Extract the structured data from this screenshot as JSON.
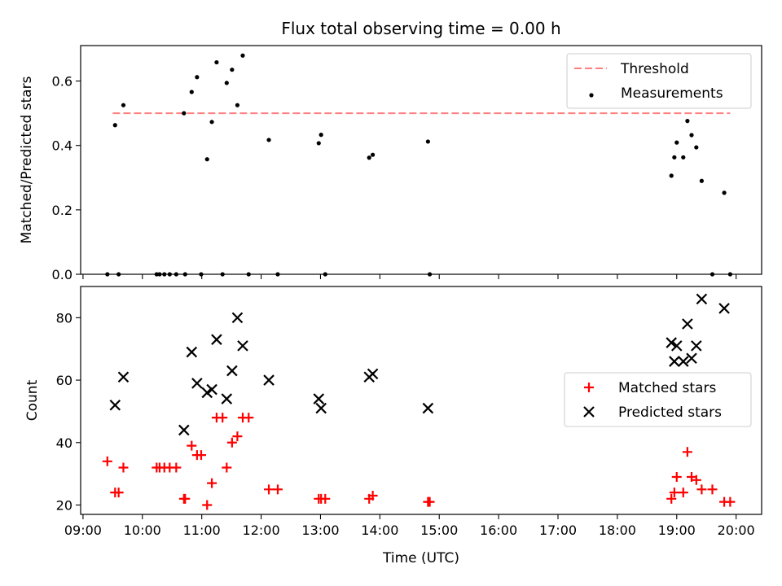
{
  "figure": {
    "title": "Flux total observing time = 0.00 h",
    "xlabel": "Time (UTC)",
    "xticks": [
      {
        "h": 9,
        "label": "09:00"
      },
      {
        "h": 10,
        "label": "10:00"
      },
      {
        "h": 11,
        "label": "11:00"
      },
      {
        "h": 12,
        "label": "12:00"
      },
      {
        "h": 13,
        "label": "13:00"
      },
      {
        "h": 14,
        "label": "14:00"
      },
      {
        "h": 15,
        "label": "15:00"
      },
      {
        "h": 16,
        "label": "16:00"
      },
      {
        "h": 17,
        "label": "17:00"
      },
      {
        "h": 18,
        "label": "18:00"
      },
      {
        "h": 19,
        "label": "19:00"
      },
      {
        "h": 20,
        "label": "20:00"
      }
    ],
    "xlim": [
      8.96,
      20.43
    ]
  },
  "chart_data": [
    {
      "type": "scatter",
      "ylabel": "Matched/Predicted stars",
      "ylim": [
        0,
        0.71
      ],
      "yticks": [
        {
          "v": 0.0,
          "label": "0.0"
        },
        {
          "v": 0.2,
          "label": "0.2"
        },
        {
          "v": 0.4,
          "label": "0.4"
        },
        {
          "v": 0.6,
          "label": "0.6"
        }
      ],
      "legend_position": "upper right",
      "threshold": {
        "name": "Threshold",
        "value": 0.5,
        "x_range": [
          9.5,
          19.9
        ],
        "color": "#ff7f7f"
      },
      "series": [
        {
          "name": "Measurements",
          "marker": "dot",
          "color": "#000000",
          "x": [
            9.41,
            9.54,
            9.6,
            9.68,
            10.24,
            10.29,
            10.37,
            10.46,
            10.57,
            10.7,
            10.72,
            10.83,
            10.92,
            10.99,
            11.09,
            11.17,
            11.25,
            11.35,
            11.42,
            11.51,
            11.6,
            11.69,
            11.79,
            12.13,
            12.28,
            12.97,
            13.01,
            13.08,
            13.82,
            13.88,
            14.81,
            14.84,
            18.91,
            18.96,
            19.0,
            19.11,
            19.18,
            19.25,
            19.33,
            19.42,
            19.6,
            19.8,
            19.9
          ],
          "y": [
            0.0,
            0.463,
            0.0,
            0.525,
            0.0,
            0.0,
            0.0,
            0.0,
            0.0,
            0.5,
            0.0,
            0.566,
            0.612,
            0.0,
            0.357,
            0.473,
            0.658,
            0.0,
            0.594,
            0.635,
            0.525,
            0.679,
            0.0,
            0.417,
            0.0,
            0.407,
            0.433,
            0.0,
            0.362,
            0.371,
            0.412,
            0.0,
            0.306,
            0.363,
            0.409,
            0.363,
            0.476,
            0.432,
            0.394,
            0.29,
            0.0,
            0.253,
            0.0
          ]
        }
      ]
    },
    {
      "type": "scatter",
      "ylabel": "Count",
      "ylim": [
        17,
        90
      ],
      "yticks": [
        {
          "v": 20,
          "label": "20"
        },
        {
          "v": 40,
          "label": "40"
        },
        {
          "v": 60,
          "label": "60"
        },
        {
          "v": 80,
          "label": "80"
        }
      ],
      "legend_position": "center right",
      "series": [
        {
          "name": "Matched stars",
          "marker": "plus",
          "color": "#ff0000",
          "x": [
            9.41,
            9.54,
            9.6,
            9.68,
            10.24,
            10.29,
            10.37,
            10.46,
            10.57,
            10.7,
            10.72,
            10.83,
            10.92,
            10.99,
            11.09,
            11.17,
            11.25,
            11.35,
            11.42,
            11.51,
            11.6,
            11.69,
            11.79,
            12.13,
            12.28,
            12.97,
            13.01,
            13.08,
            13.82,
            13.88,
            14.81,
            14.84,
            18.91,
            18.96,
            19.0,
            19.11,
            19.18,
            19.25,
            19.33,
            19.42,
            19.6,
            19.8,
            19.9
          ],
          "y": [
            34,
            24,
            24,
            32,
            32,
            32,
            32,
            32,
            32,
            22,
            22,
            39,
            36,
            36,
            20,
            27,
            48,
            48,
            32,
            40,
            42,
            48,
            48,
            25,
            25,
            22,
            22,
            22,
            22,
            23,
            21,
            21,
            22,
            24,
            29,
            24,
            37,
            29,
            28,
            25,
            25,
            21,
            21
          ]
        },
        {
          "name": "Predicted stars",
          "marker": "x",
          "color": "#000000",
          "x": [
            9.54,
            9.68,
            10.7,
            10.83,
            10.92,
            11.09,
            11.17,
            11.25,
            11.42,
            11.51,
            11.6,
            11.69,
            12.13,
            12.97,
            13.01,
            13.82,
            13.88,
            14.81,
            18.91,
            18.96,
            19.0,
            19.11,
            19.18,
            19.25,
            19.33,
            19.42,
            19.8
          ],
          "y": [
            52,
            61,
            44,
            69,
            59,
            56,
            57,
            73,
            54,
            63,
            80,
            71,
            60,
            54,
            51,
            61,
            62,
            51,
            72,
            66,
            71,
            66,
            78,
            67,
            71,
            86,
            83
          ]
        }
      ]
    }
  ]
}
